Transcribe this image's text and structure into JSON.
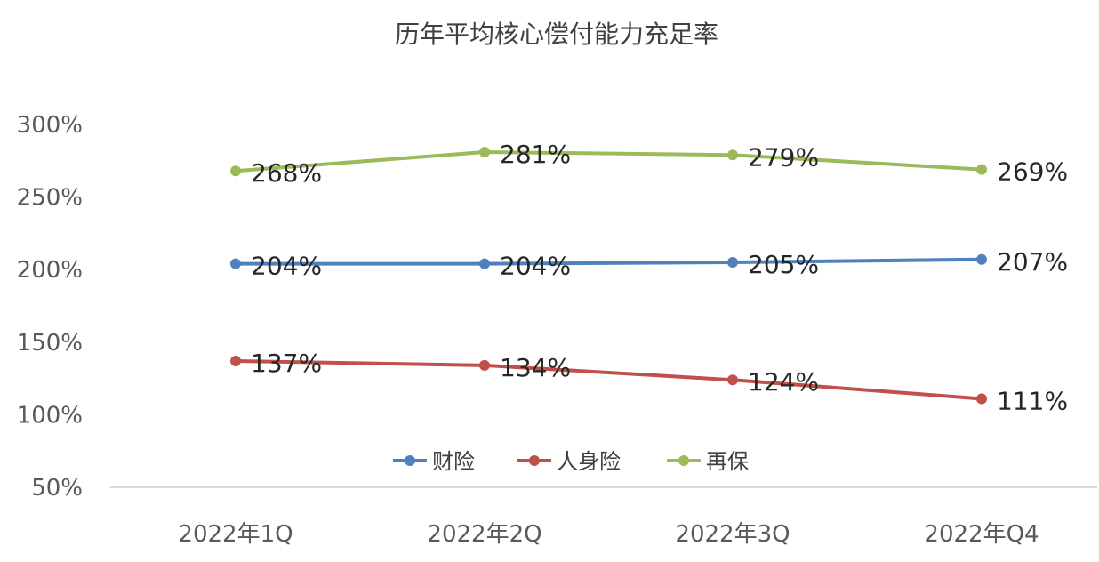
{
  "chart_data": {
    "type": "line",
    "title": "历年平均核心偿付能力充足率",
    "categories": [
      "2022年1Q",
      "2022年2Q",
      "2022年3Q",
      "2022年Q4"
    ],
    "series": [
      {
        "name": "财险",
        "color": "#4f81bd",
        "values": [
          204,
          204,
          205,
          207
        ],
        "labels": [
          "204%",
          "204%",
          "205%",
          "207%"
        ]
      },
      {
        "name": "人身险",
        "color": "#c0504d",
        "values": [
          137,
          134,
          124,
          111
        ],
        "labels": [
          "137%",
          "134%",
          "124%",
          "111%"
        ]
      },
      {
        "name": "再保",
        "color": "#9bbb59",
        "values": [
          268,
          281,
          279,
          269
        ],
        "labels": [
          "268%",
          "281%",
          "279%",
          "269%"
        ]
      }
    ],
    "y_ticks": [
      "50%",
      "100%",
      "150%",
      "200%",
      "250%",
      "300%"
    ],
    "ylim": [
      50,
      300
    ],
    "xlabel": "",
    "ylabel": "",
    "grid": false,
    "legend_position": "bottom-inside"
  }
}
